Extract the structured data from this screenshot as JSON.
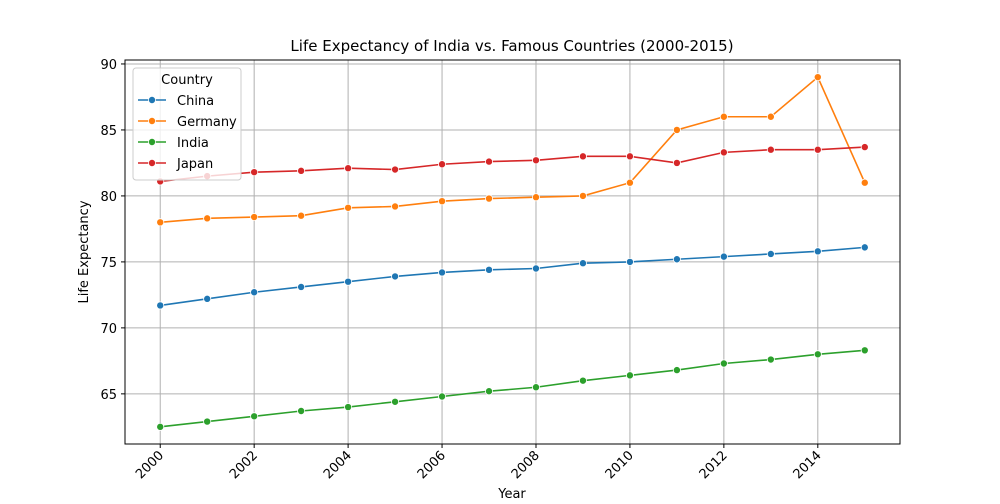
{
  "chart_data": {
    "type": "line",
    "title": "Life Expectancy of India vs. Famous Countries (2000-2015)",
    "x_label": "Year",
    "y_label": "Life Expectancy",
    "legend_title": "Country",
    "legend_position": "upper left",
    "grid": true,
    "x": [
      2000,
      2001,
      2002,
      2003,
      2004,
      2005,
      2006,
      2007,
      2008,
      2009,
      2010,
      2011,
      2012,
      2013,
      2014,
      2015
    ],
    "series": [
      {
        "name": "China",
        "color": "#1f77b4",
        "values": [
          71.7,
          72.2,
          72.7,
          73.1,
          73.5,
          73.9,
          74.2,
          74.4,
          74.5,
          74.9,
          75.0,
          75.2,
          75.4,
          75.6,
          75.8,
          76.1
        ]
      },
      {
        "name": "Germany",
        "color": "#ff7f0e",
        "values": [
          78.0,
          78.3,
          78.4,
          78.5,
          79.1,
          79.2,
          79.6,
          79.8,
          79.9,
          80.0,
          81.0,
          85.0,
          86.0,
          86.0,
          89.0,
          81.0
        ]
      },
      {
        "name": "India",
        "color": "#2ca02c",
        "values": [
          62.5,
          62.9,
          63.3,
          63.7,
          64.0,
          64.4,
          64.8,
          65.2,
          65.5,
          66.0,
          66.4,
          66.8,
          67.3,
          67.6,
          68.0,
          68.3
        ]
      },
      {
        "name": "Japan",
        "color": "#d62728",
        "values": [
          81.1,
          81.5,
          81.8,
          81.9,
          82.1,
          82.0,
          82.4,
          82.6,
          82.7,
          83.0,
          83.0,
          82.5,
          83.3,
          83.5,
          83.5,
          83.7
        ]
      }
    ],
    "xlim": [
      1999.25,
      2015.75
    ],
    "xticks": [
      2000,
      2002,
      2004,
      2006,
      2008,
      2010,
      2012,
      2014
    ],
    "ylim": [
      61.2,
      90.3
    ],
    "yticks": [
      65,
      70,
      75,
      80,
      85,
      90
    ]
  }
}
